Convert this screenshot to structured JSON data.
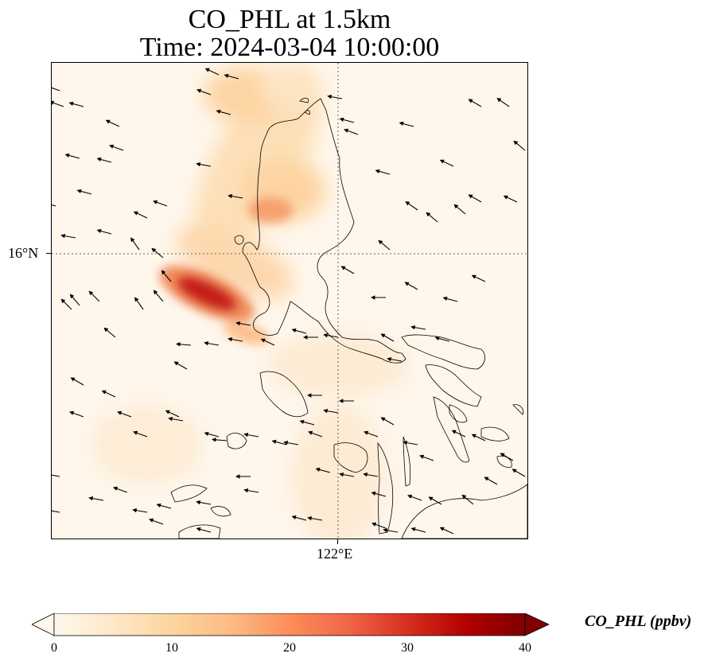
{
  "title_line1": "CO_PHL at 1.5km",
  "title_line2": "Time: 2024-03-04 10:00:00",
  "map": {
    "lat_tick_label": "16°N",
    "lon_tick_label": "122°E",
    "gridline_style": "dotted",
    "features": [
      "coastlines",
      "wind-vectors",
      "co-concentration-field"
    ]
  },
  "colorbar": {
    "label": "CO_PHL (ppbv)",
    "colormap": "OrRd",
    "extend": "both",
    "ticks": [
      "0",
      "10",
      "20",
      "30",
      "40"
    ],
    "range": [
      0,
      40
    ],
    "colors": [
      "#fff7ec",
      "#fee8c8",
      "#fdd49e",
      "#fdbb84",
      "#fc8d59",
      "#ef6548",
      "#d7301f",
      "#b30000",
      "#7f0000"
    ]
  }
}
